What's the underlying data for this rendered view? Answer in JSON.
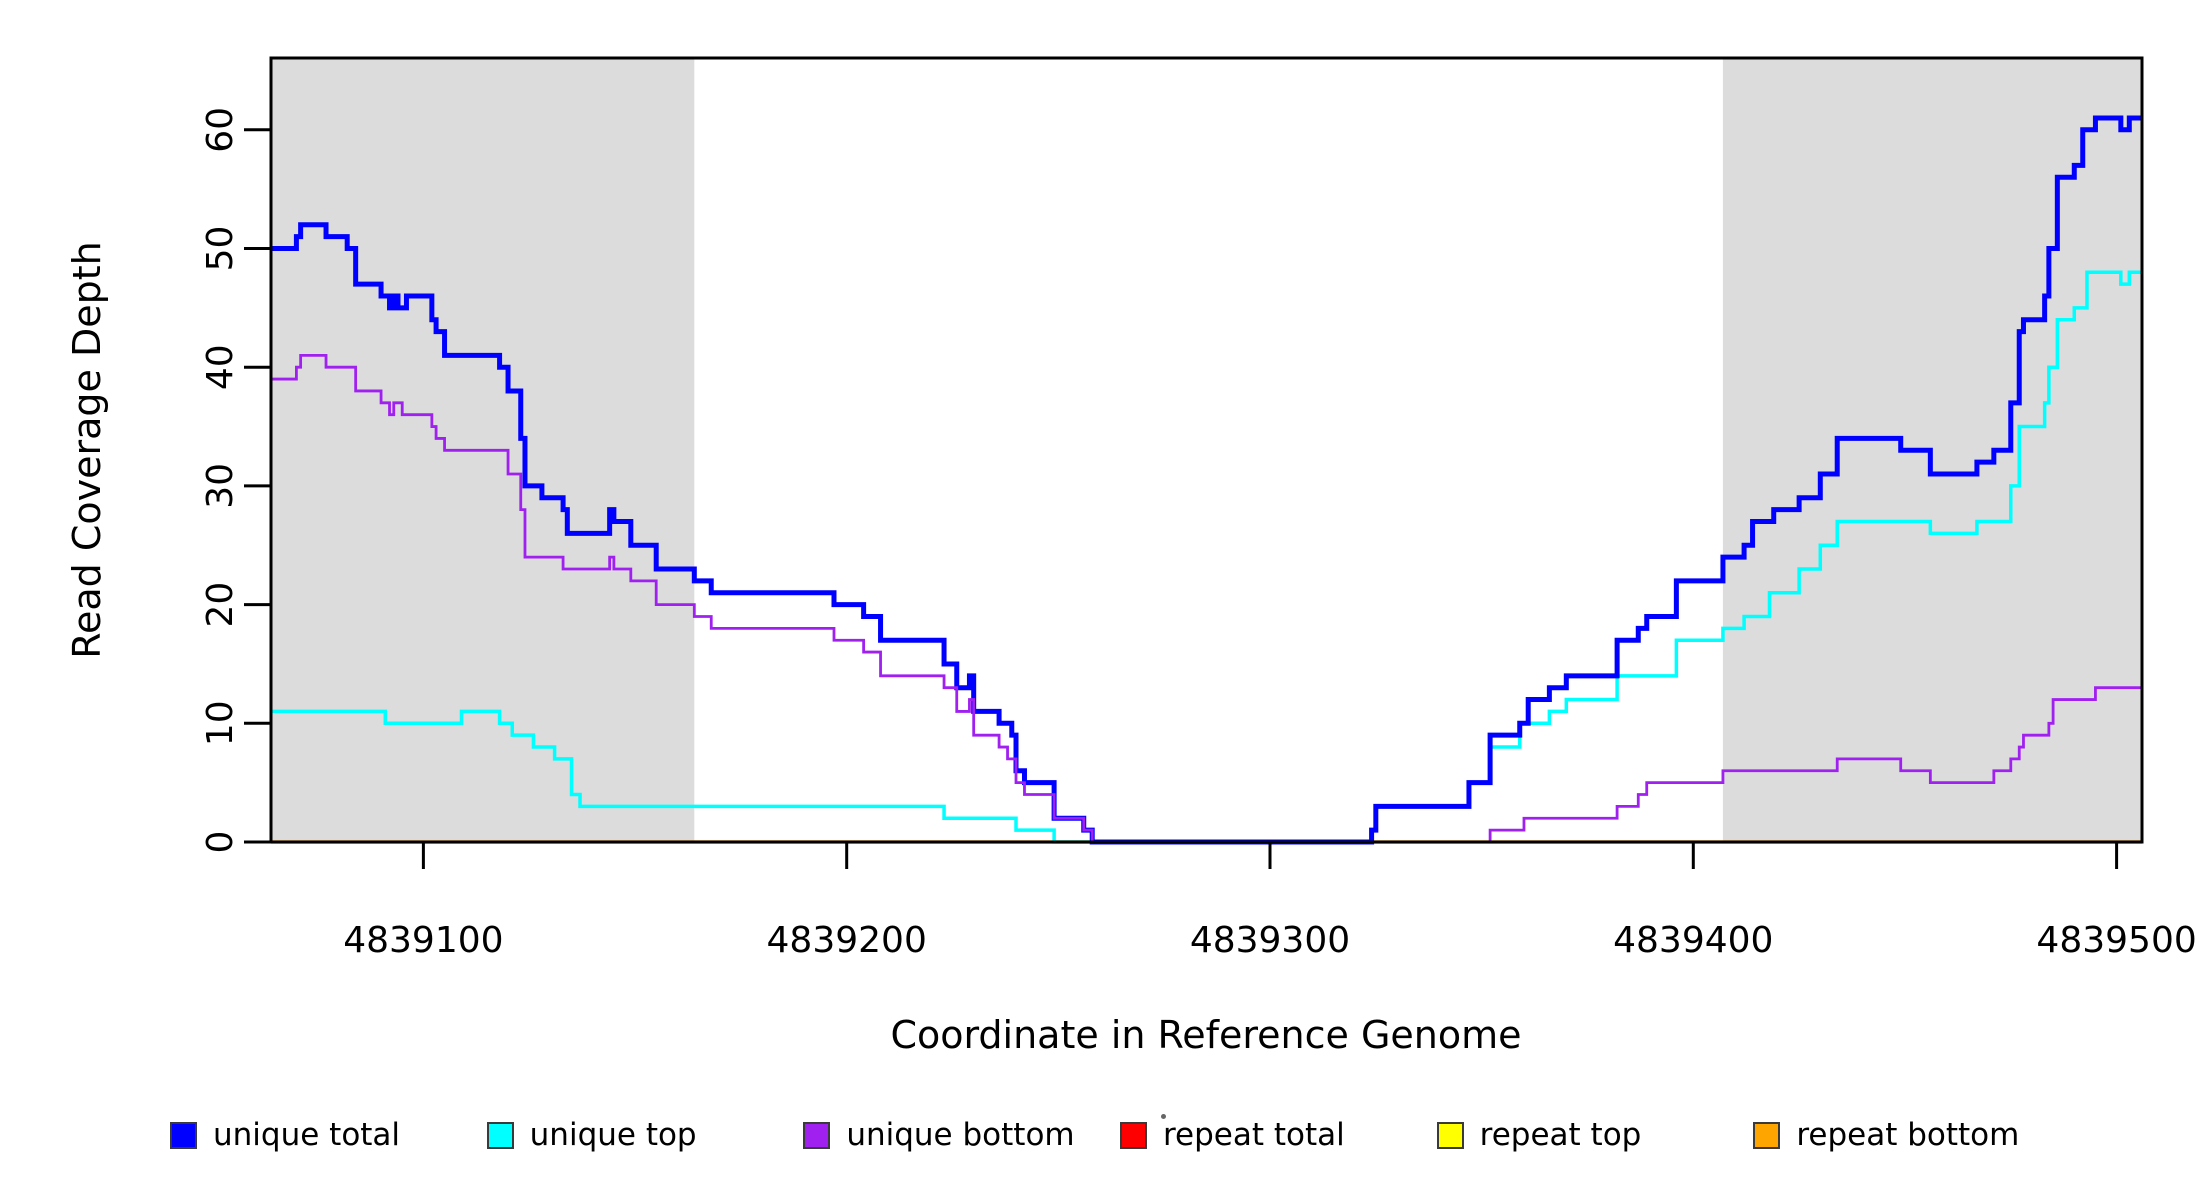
{
  "chart_data": {
    "type": "line",
    "subtype": "step",
    "title": "",
    "xlabel": "Coordinate in Reference Genome",
    "ylabel": "Read Coverage Depth",
    "xlim": [
      4839064,
      4839506
    ],
    "ylim": [
      0,
      66
    ],
    "x_ticks": [
      4839100,
      4839200,
      4839300,
      4839400,
      4839500
    ],
    "y_ticks": [
      0,
      10,
      20,
      30,
      40,
      50,
      60
    ],
    "grid": false,
    "background_color": "#ffffff",
    "shade_color": "#DCDCDC",
    "shaded_regions": [
      {
        "x0": 4839064,
        "x1": 4839164
      },
      {
        "x0": 4839407,
        "x1": 4839506
      }
    ],
    "legend": {
      "position": "bottom",
      "entries": [
        {
          "label": "unique total",
          "color": "#0000FF"
        },
        {
          "label": "unique top",
          "color": "#00FFFF"
        },
        {
          "label": "unique bottom",
          "color": "#A020F0"
        },
        {
          "label": "repeat total",
          "color": "#FF0000"
        },
        {
          "label": "repeat top",
          "color": "#FFFF00"
        },
        {
          "label": "repeat bottom",
          "color": "#FFA500"
        }
      ]
    },
    "series": [
      {
        "name": "repeat total",
        "color": "#FF0000",
        "width": 3,
        "steps": [
          [
            4839064,
            0
          ]
        ]
      },
      {
        "name": "repeat top",
        "color": "#FFFF00",
        "width": 3,
        "steps": [
          [
            4839064,
            0
          ]
        ]
      },
      {
        "name": "repeat bottom",
        "color": "#FFA500",
        "width": 3.5,
        "steps": [
          [
            4839064,
            0
          ]
        ]
      },
      {
        "name": "unique top",
        "color": "#00FFFF",
        "width": 3.5,
        "steps": [
          [
            4839064,
            11
          ],
          [
            4839091,
            10
          ],
          [
            4839109,
            11
          ],
          [
            4839118,
            10
          ],
          [
            4839121,
            9
          ],
          [
            4839126,
            8
          ],
          [
            4839131,
            7
          ],
          [
            4839135,
            4
          ],
          [
            4839137,
            3
          ],
          [
            4839223,
            2
          ],
          [
            4839240,
            1
          ],
          [
            4839249,
            0
          ],
          [
            4839324,
            1
          ],
          [
            4839325,
            3
          ],
          [
            4839347,
            5
          ],
          [
            4839352,
            8
          ],
          [
            4839359,
            10
          ],
          [
            4839366,
            11
          ],
          [
            4839370,
            12
          ],
          [
            4839382,
            14
          ],
          [
            4839396,
            17
          ],
          [
            4839407,
            18
          ],
          [
            4839412,
            19
          ],
          [
            4839418,
            21
          ],
          [
            4839425,
            23
          ],
          [
            4839430,
            25
          ],
          [
            4839434,
            27
          ],
          [
            4839456,
            26
          ],
          [
            4839467,
            27
          ],
          [
            4839475,
            30
          ],
          [
            4839477,
            35
          ],
          [
            4839483,
            37
          ],
          [
            4839484,
            40
          ],
          [
            4839486,
            44
          ],
          [
            4839490,
            45
          ],
          [
            4839493,
            48
          ],
          [
            4839501,
            47
          ],
          [
            4839503,
            48
          ]
        ]
      },
      {
        "name": "unique total",
        "color": "#0000FF",
        "width": 5,
        "steps": [
          [
            4839064,
            50
          ],
          [
            4839070,
            51
          ],
          [
            4839071,
            52
          ],
          [
            4839077,
            51
          ],
          [
            4839082,
            50
          ],
          [
            4839084,
            47
          ],
          [
            4839090,
            46
          ],
          [
            4839092,
            45
          ],
          [
            4839093,
            46
          ],
          [
            4839094,
            45
          ],
          [
            4839096,
            46
          ],
          [
            4839102,
            44
          ],
          [
            4839103,
            43
          ],
          [
            4839105,
            41
          ],
          [
            4839118,
            40
          ],
          [
            4839120,
            38
          ],
          [
            4839123,
            34
          ],
          [
            4839124,
            30
          ],
          [
            4839128,
            29
          ],
          [
            4839133,
            28
          ],
          [
            4839134,
            26
          ],
          [
            4839144,
            28
          ],
          [
            4839145,
            27
          ],
          [
            4839149,
            25
          ],
          [
            4839155,
            23
          ],
          [
            4839164,
            22
          ],
          [
            4839168,
            21
          ],
          [
            4839197,
            20
          ],
          [
            4839204,
            19
          ],
          [
            4839208,
            17
          ],
          [
            4839223,
            15
          ],
          [
            4839226,
            13
          ],
          [
            4839229,
            14
          ],
          [
            4839230,
            11
          ],
          [
            4839236,
            10
          ],
          [
            4839239,
            9
          ],
          [
            4839240,
            6
          ],
          [
            4839242,
            5
          ],
          [
            4839249,
            2
          ],
          [
            4839256,
            1
          ],
          [
            4839258,
            0
          ],
          [
            4839324,
            1
          ],
          [
            4839325,
            3
          ],
          [
            4839347,
            5
          ],
          [
            4839352,
            9
          ],
          [
            4839359,
            10
          ],
          [
            4839361,
            12
          ],
          [
            4839366,
            13
          ],
          [
            4839370,
            14
          ],
          [
            4839382,
            17
          ],
          [
            4839387,
            18
          ],
          [
            4839389,
            19
          ],
          [
            4839396,
            22
          ],
          [
            4839407,
            24
          ],
          [
            4839412,
            25
          ],
          [
            4839414,
            27
          ],
          [
            4839419,
            28
          ],
          [
            4839425,
            29
          ],
          [
            4839430,
            31
          ],
          [
            4839434,
            34
          ],
          [
            4839449,
            33
          ],
          [
            4839456,
            31
          ],
          [
            4839467,
            32
          ],
          [
            4839471,
            33
          ],
          [
            4839475,
            37
          ],
          [
            4839477,
            43
          ],
          [
            4839478,
            44
          ],
          [
            4839483,
            46
          ],
          [
            4839484,
            50
          ],
          [
            4839486,
            56
          ],
          [
            4839490,
            57
          ],
          [
            4839492,
            60
          ],
          [
            4839495,
            61
          ],
          [
            4839501,
            60
          ],
          [
            4839503,
            61
          ]
        ]
      },
      {
        "name": "unique bottom",
        "color": "#A020F0",
        "width": 2.8,
        "steps": [
          [
            4839064,
            39
          ],
          [
            4839070,
            40
          ],
          [
            4839071,
            41
          ],
          [
            4839077,
            40
          ],
          [
            4839084,
            38
          ],
          [
            4839090,
            37
          ],
          [
            4839092,
            36
          ],
          [
            4839093,
            37
          ],
          [
            4839095,
            36
          ],
          [
            4839102,
            35
          ],
          [
            4839103,
            34
          ],
          [
            4839105,
            33
          ],
          [
            4839120,
            31
          ],
          [
            4839123,
            28
          ],
          [
            4839124,
            24
          ],
          [
            4839133,
            23
          ],
          [
            4839144,
            24
          ],
          [
            4839145,
            23
          ],
          [
            4839149,
            22
          ],
          [
            4839155,
            20
          ],
          [
            4839164,
            19
          ],
          [
            4839168,
            18
          ],
          [
            4839197,
            17
          ],
          [
            4839204,
            16
          ],
          [
            4839208,
            14
          ],
          [
            4839223,
            13
          ],
          [
            4839226,
            11
          ],
          [
            4839229,
            12
          ],
          [
            4839230,
            9
          ],
          [
            4839236,
            8
          ],
          [
            4839238,
            7
          ],
          [
            4839240,
            5
          ],
          [
            4839242,
            4
          ],
          [
            4839249,
            2
          ],
          [
            4839256,
            1
          ],
          [
            4839258,
            0
          ],
          [
            4839352,
            1
          ],
          [
            4839360,
            2
          ],
          [
            4839382,
            3
          ],
          [
            4839387,
            4
          ],
          [
            4839389,
            5
          ],
          [
            4839407,
            6
          ],
          [
            4839434,
            7
          ],
          [
            4839449,
            6
          ],
          [
            4839456,
            5
          ],
          [
            4839471,
            6
          ],
          [
            4839475,
            7
          ],
          [
            4839477,
            8
          ],
          [
            4839478,
            9
          ],
          [
            4839484,
            10
          ],
          [
            4839485,
            12
          ],
          [
            4839495,
            13
          ]
        ]
      }
    ]
  }
}
